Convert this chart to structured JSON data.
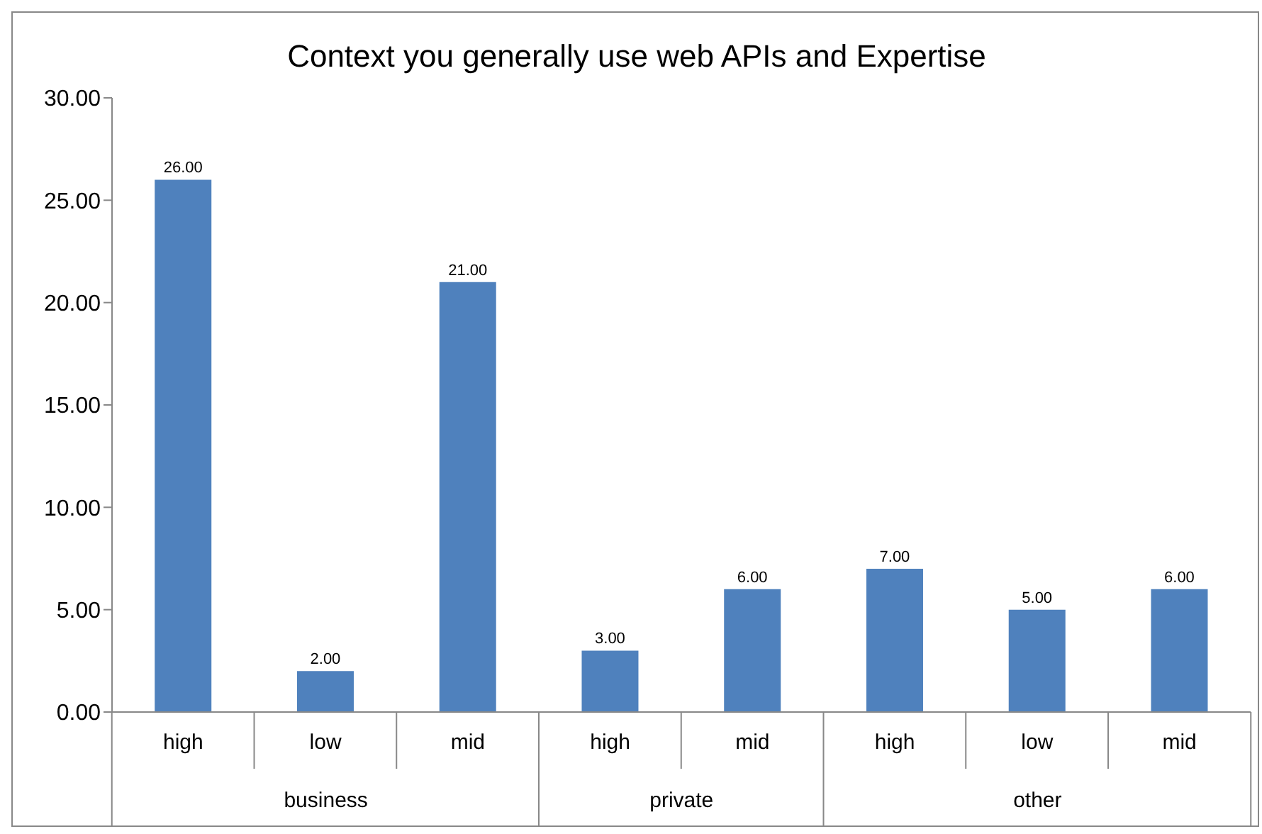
{
  "chart_data": {
    "type": "bar",
    "title": "Context you generally use web APIs and Expertise",
    "categories": [
      "high",
      "low",
      "mid",
      "high",
      "mid",
      "high",
      "low",
      "mid"
    ],
    "values": [
      26,
      2,
      21,
      3,
      6,
      7,
      5,
      6
    ],
    "value_labels": [
      "26.00",
      "2.00",
      "21.00",
      "3.00",
      "6.00",
      "7.00",
      "5.00",
      "6.00"
    ],
    "color": "#4f81bd",
    "ylim": [
      0,
      30
    ],
    "yticks": [
      {
        "value": 0,
        "label": "0.00"
      },
      {
        "value": 5,
        "label": "5.00"
      },
      {
        "value": 10,
        "label": "10.00"
      },
      {
        "value": 15,
        "label": "15.00"
      },
      {
        "value": 20,
        "label": "20.00"
      },
      {
        "value": 25,
        "label": "25.00"
      },
      {
        "value": 30,
        "label": "30.00"
      }
    ],
    "annotations": [
      "business",
      "private",
      "other"
    ],
    "grid": false,
    "legend": false
  }
}
